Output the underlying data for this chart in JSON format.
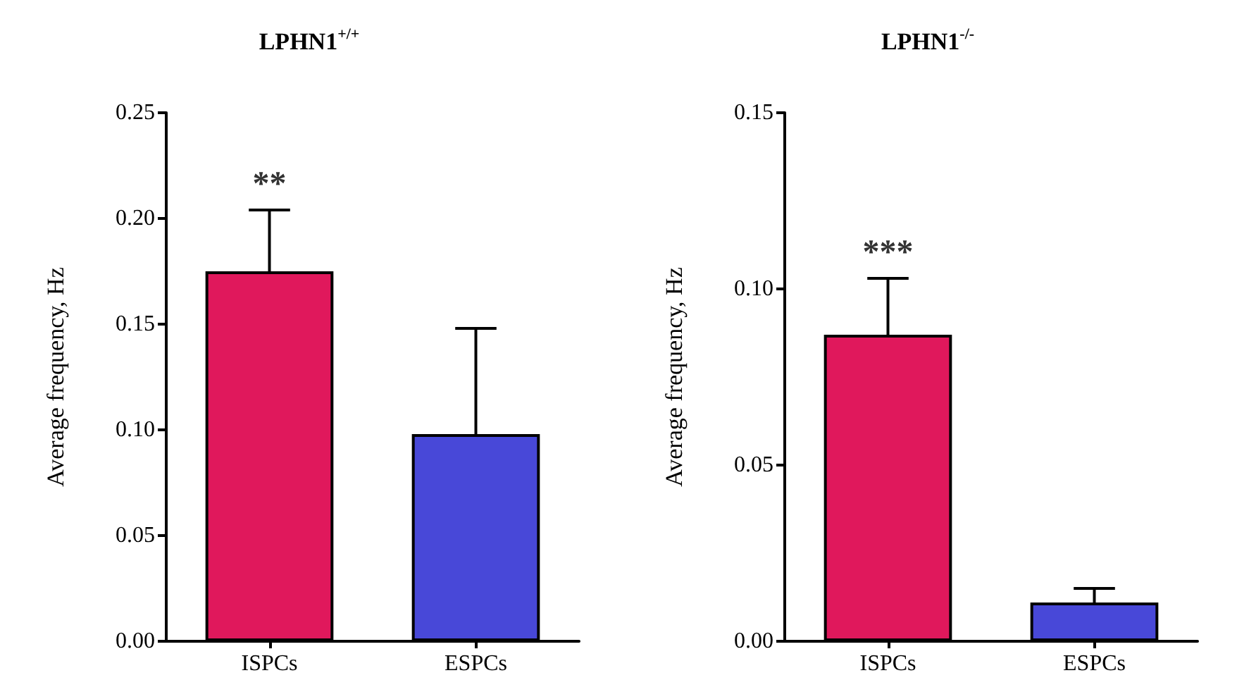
{
  "chart_data": [
    {
      "type": "bar",
      "title": "LPHN1$^{+/+}$",
      "ylabel": "Average frequency, Hz",
      "categories": [
        "ISPCs",
        "ESPCs"
      ],
      "values": [
        0.175,
        0.098
      ],
      "errors": [
        [
          0.175,
          0.204
        ],
        [
          0.098,
          0.148
        ]
      ],
      "colors": [
        "#e0185c",
        "#4848d8"
      ],
      "ylim": [
        0,
        0.25
      ],
      "yticks": [
        {
          "value": 0,
          "label": "0.00"
        },
        0.05,
        {
          "value": 0.1,
          "label": "0.10"
        },
        0.15,
        {
          "value": 0.2,
          "label": "0.20"
        },
        0.25
      ],
      "grid": false,
      "annotations": [
        {
          "text": "**",
          "x": "ISPCs",
          "y": 0.204
        }
      ]
    },
    {
      "type": "bar",
      "title": "LPHN1$^{-/-}$",
      "ylabel": "Average frequency, Hz",
      "categories": [
        "ISPCs",
        "ESPCs"
      ],
      "values": [
        0.087,
        0.011
      ],
      "errors": [
        [
          0.087,
          0.103
        ],
        [
          0.011,
          0.015
        ]
      ],
      "colors": [
        "#e0185c",
        "#4848d8"
      ],
      "ylim": [
        0,
        0.15
      ],
      "yticks": [
        {
          "value": 0,
          "label": "0.00"
        },
        0.05,
        {
          "value": 0.1,
          "label": "0.10"
        },
        0.15
      ],
      "grid": false,
      "annotations": [
        {
          "text": "***",
          "x": "ISPCs",
          "y": 0.103
        }
      ]
    }
  ]
}
